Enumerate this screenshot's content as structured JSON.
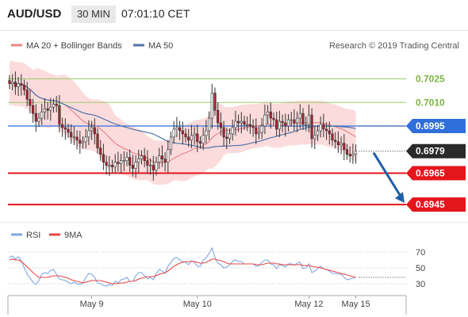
{
  "header": {
    "symbol": "AUD/USD",
    "timeframe": "30 MIN",
    "time": "07:01:10 CET"
  },
  "legend": {
    "ma20_label": "MA 20 + Bollinger Bands",
    "ma50_label": "MA 50",
    "credit": "Research © 2019 Trading Central",
    "rsi_label": "RSI",
    "rsi_ma_label": "9MA"
  },
  "colors": {
    "candle_up": "#ffffff",
    "candle_down": "#b21f2a",
    "ma20": "#e8868a",
    "ma50": "#4f75a8",
    "bollinger_fill": "#fbd5d6",
    "resistance": "#9acd6b",
    "pivot": "#2f6fdc",
    "support": "#e4161c",
    "current": "#2a2a2a",
    "rsi_line": "#7ea6e0",
    "rsi_ma": "#e84545",
    "arrow": "#1f5fa8"
  },
  "chart_data": [
    {
      "type": "candlestick",
      "title": "",
      "x_tick_labels": [
        {
          "label": "May 9",
          "index": 28
        },
        {
          "label": "May 10",
          "index": 64
        },
        {
          "label": "May 12",
          "index": 102
        },
        {
          "label": "May 15",
          "index": 118
        }
      ],
      "ylim": [
        0.6937,
        0.7052
      ],
      "levels": [
        {
          "value": 0.7025,
          "label": "0.7025",
          "kind": "resistance"
        },
        {
          "value": 0.701,
          "label": "0.7010",
          "kind": "resistance"
        },
        {
          "value": 0.6995,
          "label": "0.6995",
          "kind": "pivot"
        },
        {
          "value": 0.6979,
          "label": "0.6979",
          "kind": "current"
        },
        {
          "value": 0.6965,
          "label": "0.6965",
          "kind": "support"
        },
        {
          "value": 0.6945,
          "label": "0.6945",
          "kind": "support"
        }
      ],
      "arrow": {
        "from": 0.6978,
        "to": 0.6945
      },
      "closes": [
        0.7022,
        0.7023,
        0.702,
        0.7022,
        0.7021,
        0.7018,
        0.7012,
        0.7008,
        0.7003,
        0.6998,
        0.7,
        0.7004,
        0.7006,
        0.7005,
        0.7007,
        0.7009,
        0.7008,
        0.6996,
        0.6994,
        0.6993,
        0.6991,
        0.6988,
        0.6988,
        0.6986,
        0.6984,
        0.6985,
        0.6988,
        0.6992,
        0.6994,
        0.699,
        0.6981,
        0.6977,
        0.6972,
        0.697,
        0.697,
        0.6969,
        0.6972,
        0.6971,
        0.6973,
        0.6973,
        0.6975,
        0.697,
        0.6968,
        0.6972,
        0.6974,
        0.6976,
        0.6973,
        0.697,
        0.697,
        0.6967,
        0.6972,
        0.6976,
        0.6974,
        0.6972,
        0.698,
        0.6988,
        0.6993,
        0.6994,
        0.6992,
        0.699,
        0.6988,
        0.6986,
        0.6989,
        0.699,
        0.6985,
        0.6984,
        0.6989,
        0.6992,
        0.7,
        0.7016,
        0.7005,
        0.6997,
        0.6994,
        0.6988,
        0.6987,
        0.699,
        0.6994,
        0.6998,
        0.6997,
        0.6998,
        0.6996,
        0.6996,
        0.6995,
        0.6994,
        0.699,
        0.6991,
        0.6995,
        0.7002,
        0.7004,
        0.7,
        0.6999,
        0.6993,
        0.6998,
        0.6997,
        0.6995,
        0.6999,
        0.6999,
        0.6997,
        0.7,
        0.7003,
        0.6996,
        0.6996,
        0.7002,
        0.6987,
        0.6989,
        0.6992,
        0.6996,
        0.6993,
        0.6992,
        0.699,
        0.6986,
        0.6985,
        0.6983,
        0.6984,
        0.698,
        0.6977,
        0.6976,
        0.6977,
        0.6979
      ]
    },
    {
      "type": "line",
      "title": "RSI",
      "ylim": [
        20,
        80
      ],
      "y_ticks": [
        70,
        50,
        30
      ],
      "series": [
        {
          "name": "RSI",
          "values": [
            63,
            65,
            61,
            64,
            59,
            50,
            42,
            37,
            32,
            29,
            34,
            42,
            44,
            43,
            47,
            48,
            42,
            36,
            35,
            34,
            32,
            30,
            32,
            30,
            29,
            31,
            38,
            43,
            42,
            38,
            31,
            30,
            28,
            27,
            29,
            28,
            33,
            31,
            35,
            36,
            38,
            33,
            33,
            40,
            44,
            44,
            40,
            36,
            38,
            35,
            43,
            48,
            46,
            43,
            52,
            57,
            62,
            63,
            60,
            58,
            57,
            54,
            59,
            57,
            52,
            52,
            60,
            63,
            68,
            75,
            63,
            56,
            54,
            50,
            51,
            54,
            58,
            60,
            58,
            58,
            55,
            55,
            55,
            55,
            52,
            53,
            57,
            60,
            60,
            55,
            54,
            49,
            54,
            53,
            51,
            55,
            55,
            53,
            56,
            57,
            49,
            50,
            55,
            44,
            46,
            49,
            52,
            49,
            48,
            46,
            43,
            43,
            42,
            42,
            38,
            35,
            36,
            37,
            38
          ]
        },
        {
          "name": "9MA",
          "values": [
            60,
            61,
            60,
            60,
            58,
            55,
            51,
            48,
            44,
            41,
            38,
            38,
            38,
            38,
            39,
            40,
            40,
            40,
            39,
            38,
            37,
            35,
            34,
            33,
            32,
            31,
            32,
            33,
            34,
            34,
            34,
            34,
            33,
            32,
            31,
            30,
            30,
            30,
            31,
            31,
            32,
            33,
            33,
            34,
            36,
            37,
            38,
            39,
            39,
            39,
            40,
            42,
            43,
            44,
            46,
            49,
            52,
            54,
            56,
            57,
            58,
            58,
            58,
            58,
            57,
            56,
            56,
            57,
            59,
            61,
            61,
            60,
            59,
            58,
            56,
            55,
            55,
            55,
            55,
            55,
            55,
            55,
            55,
            55,
            54,
            54,
            54,
            55,
            56,
            56,
            56,
            55,
            55,
            54,
            54,
            54,
            54,
            54,
            54,
            54,
            53,
            53,
            53,
            52,
            51,
            51,
            50,
            49,
            48,
            47,
            46,
            45,
            44,
            43,
            42,
            41,
            40,
            39,
            38
          ]
        }
      ]
    }
  ]
}
